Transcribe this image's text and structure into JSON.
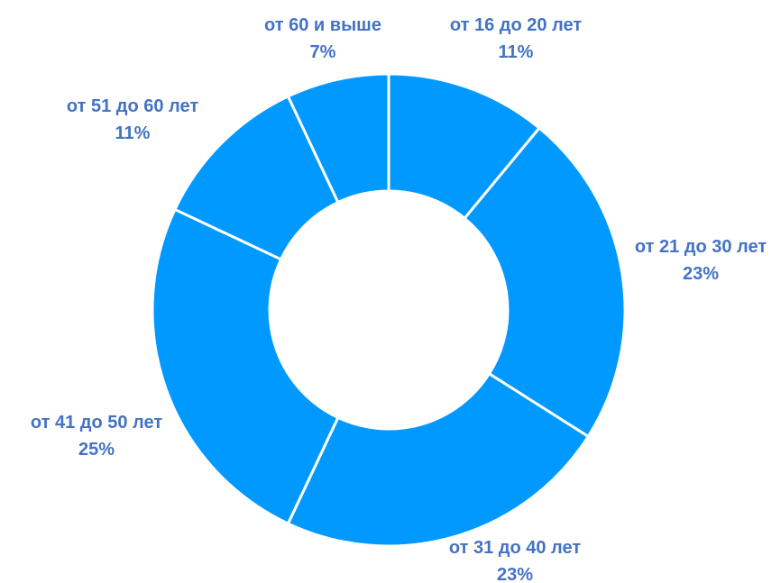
{
  "chart_data": {
    "type": "pie",
    "style": "donut",
    "title": "",
    "slice_color": "#0099FF",
    "label_color": "#4472C4",
    "separator_color": "#FFFFFF",
    "categories": [
      "от 16 до 20 лет",
      "от 21 до 30 лет",
      "от 31 до 40 лет",
      "от 41 до 50 лет",
      "от 51 до 60 лет",
      "от 60 и выше"
    ],
    "values": [
      11,
      23,
      23,
      25,
      11,
      7
    ],
    "data_labels": [
      "11%",
      "23%",
      "23%",
      "25%",
      "11%",
      "7%"
    ],
    "legend": "none"
  }
}
